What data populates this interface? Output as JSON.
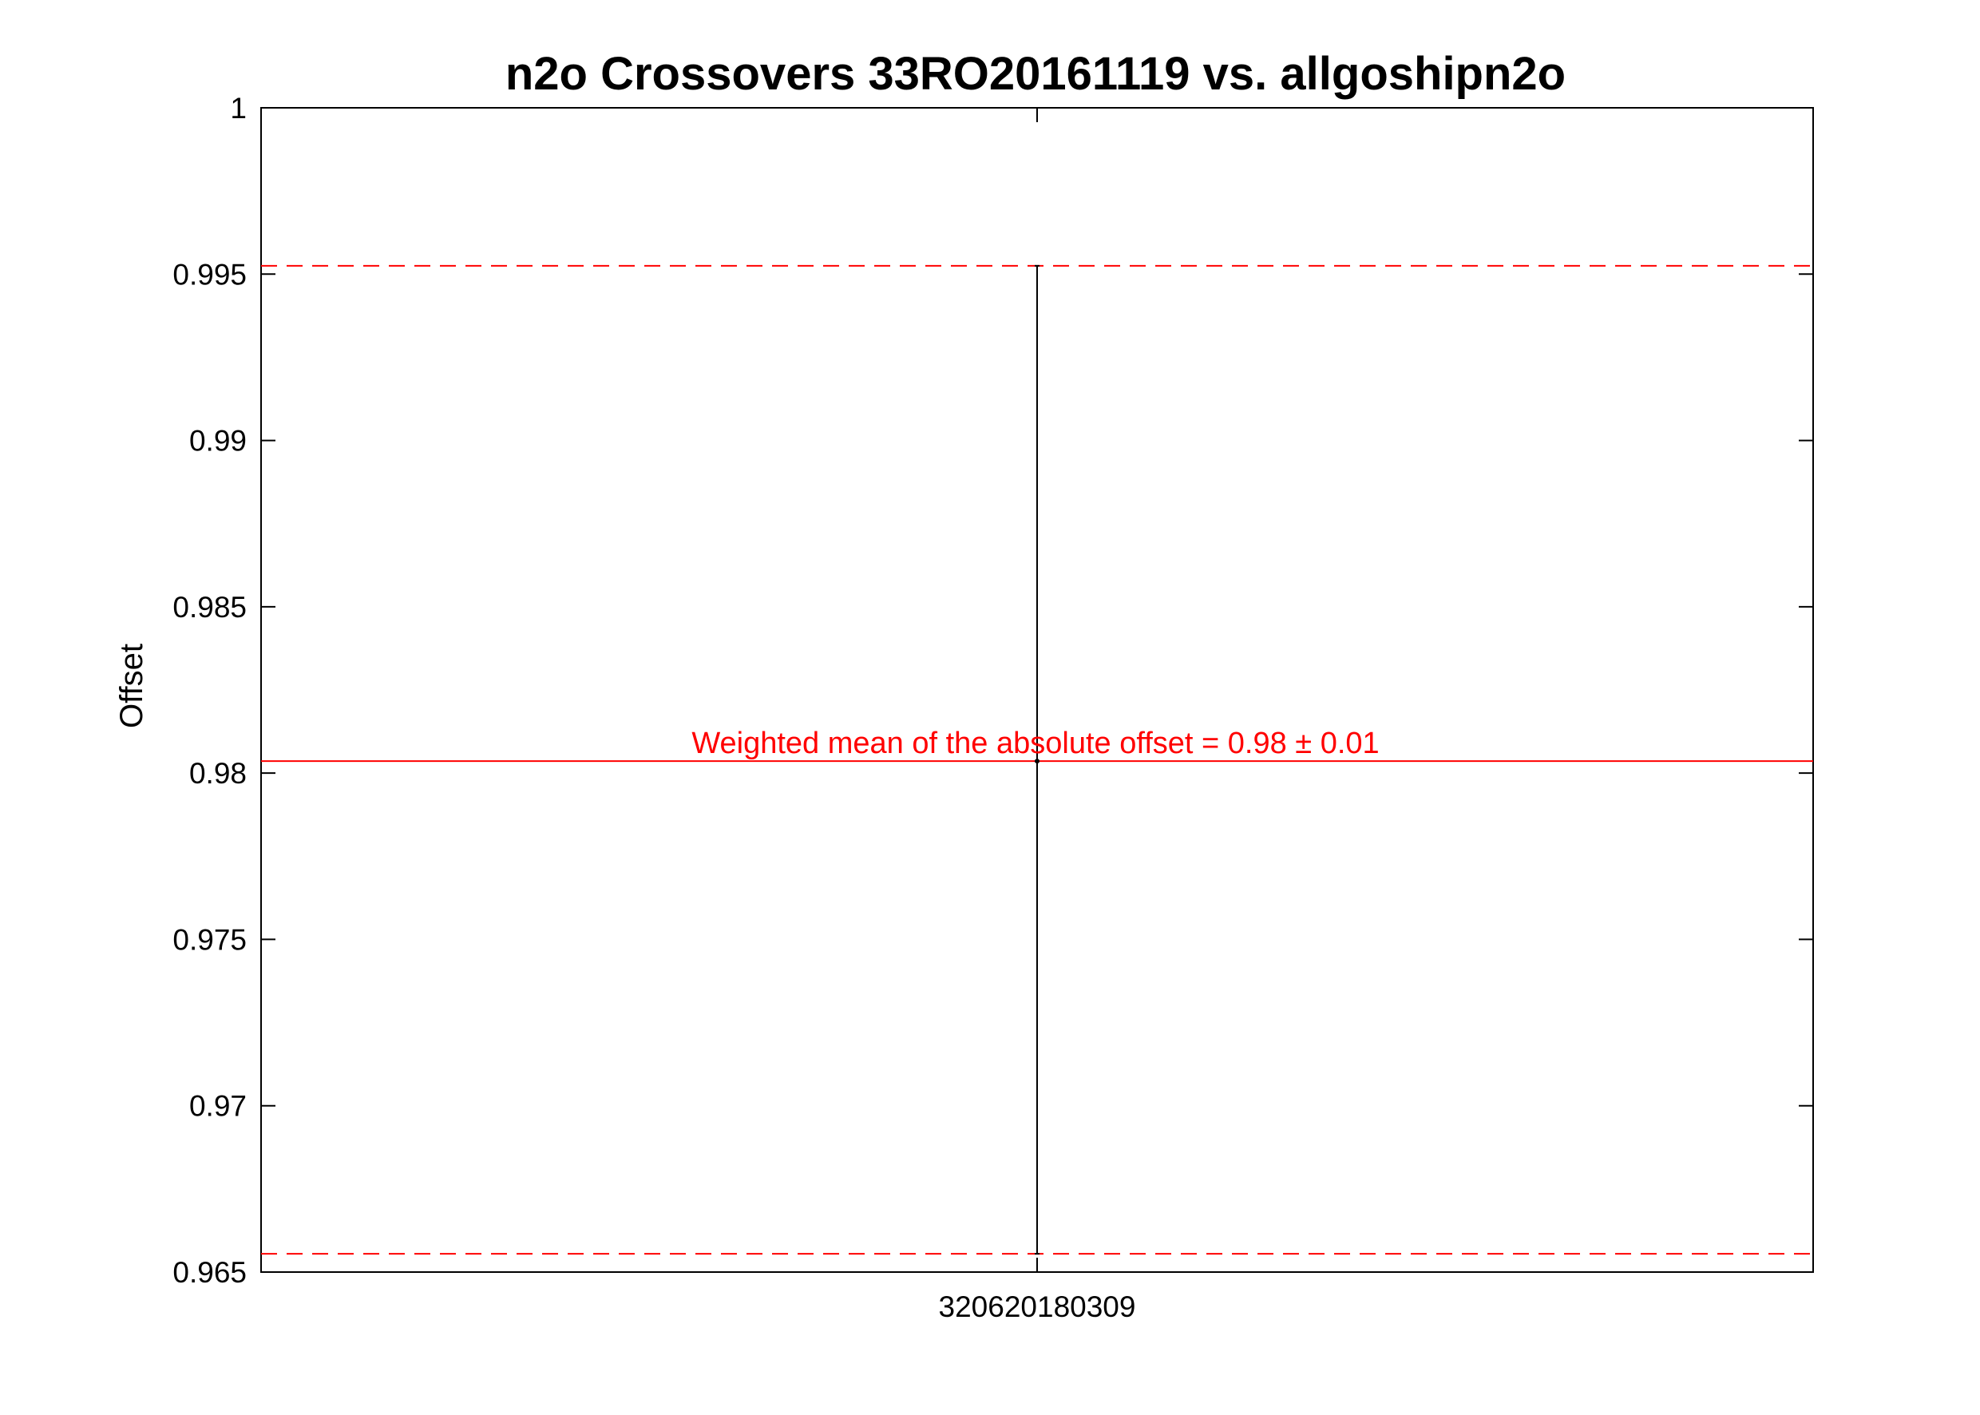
{
  "chart_data": {
    "type": "scatter",
    "title": "n2o Crossovers 33RO20161119 vs. allgoshipn2o",
    "xlabel": "",
    "ylabel": "Offset",
    "categories": [
      "320620180309"
    ],
    "series": [
      {
        "values": [
          0.98036
        ],
        "error_low": [
          0.96555
        ],
        "error_high": [
          0.99525
        ]
      }
    ],
    "ylim": [
      0.965,
      1
    ],
    "yticks": [
      0.965,
      0.97,
      0.975,
      0.98,
      0.985,
      0.99,
      0.995,
      1
    ],
    "ytick_labels": [
      "0.965",
      "0.97",
      "0.975",
      "0.98",
      "0.985",
      "0.99",
      "0.995",
      "1"
    ],
    "reference_lines": {
      "mean": 0.98036,
      "upper": 0.99525,
      "lower": 0.96555,
      "color": "#ff0000"
    },
    "annotation": "Weighted mean of the absolute offset = 0.98 ± 0.01",
    "grid": false,
    "colors": {
      "axes": "#000000",
      "errorbar": "#000000",
      "reference": "#ff0000"
    }
  }
}
